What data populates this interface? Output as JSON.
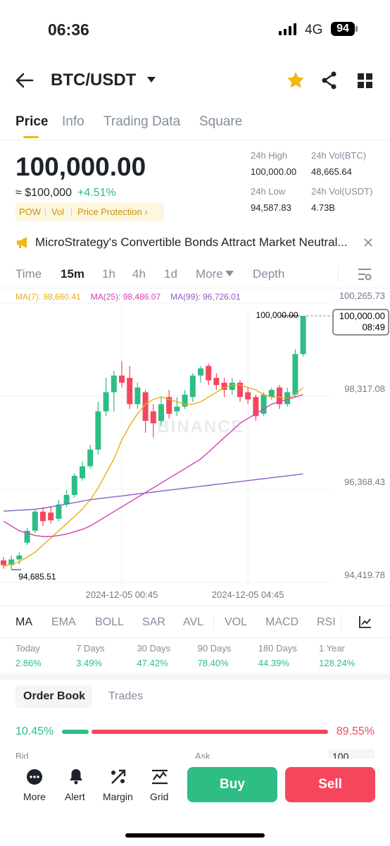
{
  "status_bar": {
    "time": "06:36",
    "network": "4G",
    "battery": "94"
  },
  "header": {
    "pair": "BTC/USDT"
  },
  "tabs": [
    "Price",
    "Info",
    "Trading Data",
    "Square"
  ],
  "ticker": {
    "price": "100,000.00",
    "approx": "≈ $100,000",
    "change": "+4.51%",
    "tags": [
      "POW",
      "Vol",
      "Price Protection ›"
    ],
    "stats": [
      {
        "label": "24h High",
        "value": "100,000.00"
      },
      {
        "label": "24h Vol(BTC)",
        "value": "48,665.64"
      },
      {
        "label": "24h Low",
        "value": "94,587.83"
      },
      {
        "label": "24h Vol(USDT)",
        "value": "4.73B"
      }
    ]
  },
  "news": "MicroStrategy's Convertible Bonds Attract Market Neutral...",
  "timeframes": [
    "Time",
    "15m",
    "1h",
    "4h",
    "1d",
    "More",
    "Depth"
  ],
  "chart_data": {
    "type": "candlestick",
    "ma_legend": [
      {
        "text": "MA(7): 98,660.41",
        "color": "#e6b011"
      },
      {
        "text": "MA(25): 98,486.07",
        "color": "#d83fb5"
      },
      {
        "text": "MA(99): 96,726.01",
        "color": "#8d5fc8"
      }
    ],
    "watermark": "BINANCE",
    "categories": [
      null,
      null,
      null,
      null,
      null,
      null,
      null,
      null,
      null,
      null,
      null,
      null,
      null,
      null,
      null,
      "2024-12-05 00:45",
      null,
      null,
      null,
      null,
      null,
      null,
      null,
      null,
      null,
      null,
      null,
      null,
      null,
      null,
      null,
      "2024-12-05 04:45",
      null,
      null,
      null,
      null,
      null,
      null,
      null
    ],
    "open": [
      94880,
      94780,
      94900,
      95250,
      95500,
      95900,
      95880,
      95750,
      96050,
      96250,
      96600,
      96850,
      97200,
      98000,
      98400,
      98750,
      98700,
      98150,
      98400,
      98000,
      97800,
      98300,
      98000,
      98100,
      98300,
      98750,
      98950,
      98700,
      98600,
      98450,
      98600,
      98400,
      98300,
      97950,
      98300,
      98500,
      98150,
      98350,
      99200
    ],
    "high": [
      94950,
      94980,
      95050,
      95560,
      95950,
      96000,
      96000,
      96150,
      96350,
      96700,
      96950,
      97300,
      98200,
      98700,
      98850,
      99050,
      98950,
      98600,
      98450,
      98150,
      98300,
      98450,
      98300,
      98450,
      98800,
      98950,
      99000,
      98800,
      98700,
      98700,
      98650,
      98500,
      98350,
      98400,
      98500,
      98550,
      98500,
      99300,
      100000
    ],
    "low": [
      94700,
      94685.51,
      94800,
      95200,
      95450,
      95600,
      95650,
      95700,
      96000,
      96200,
      96550,
      96800,
      97100,
      97900,
      98000,
      98500,
      98050,
      98050,
      97550,
      97450,
      97700,
      97850,
      97900,
      98050,
      98200,
      98600,
      98550,
      98450,
      98300,
      98350,
      98200,
      98150,
      97800,
      97900,
      98250,
      98050,
      98100,
      98300,
      99150
    ],
    "close": [
      94780,
      94900,
      94980,
      95500,
      95900,
      95700,
      95720,
      96050,
      96250,
      96650,
      96850,
      97200,
      98000,
      98400,
      98750,
      98600,
      98150,
      98500,
      97800,
      97750,
      98150,
      97950,
      98100,
      98350,
      98750,
      98900,
      98650,
      98550,
      98450,
      98600,
      98300,
      98250,
      97900,
      98350,
      98450,
      98150,
      98400,
      99200,
      100000
    ],
    "up_color": "#2ebd85",
    "down_color": "#f6465d",
    "lines": [
      {
        "color": "#e6b011",
        "values": [
          94750,
          94800,
          94850,
          94950,
          95050,
          95200,
          95350,
          95500,
          95650,
          95800,
          95950,
          96150,
          96400,
          96700,
          97000,
          97400,
          97700,
          97950,
          98150,
          98250,
          98300,
          98250,
          98200,
          98150,
          98150,
          98200,
          98300,
          98400,
          98500,
          98550,
          98550,
          98500,
          98450,
          98350,
          98300,
          98300,
          98250,
          98350,
          98500
        ]
      },
      {
        "color": "#d83fb5",
        "values": [
          95700,
          95600,
          95500,
          95450,
          95400,
          95380,
          95380,
          95400,
          95430,
          95480,
          95530,
          95600,
          95700,
          95800,
          95900,
          96000,
          96100,
          96200,
          96300,
          96400,
          96500,
          96600,
          96700,
          96800,
          96900,
          97000,
          97150,
          97300,
          97450,
          97600,
          97750,
          97850,
          97950,
          98050,
          98150,
          98200,
          98250,
          98300,
          98350
        ]
      },
      {
        "color": "#8d5fc8",
        "values": [
          95910,
          95920,
          95930,
          95940,
          95950,
          95970,
          96000,
          96030,
          96060,
          96090,
          96120,
          96150,
          96170,
          96190,
          96210,
          96230,
          96250,
          96270,
          96290,
          96310,
          96330,
          96350,
          96370,
          96390,
          96410,
          96430,
          96450,
          96470,
          96490,
          96510,
          96530,
          96550,
          96570,
          96590,
          96610,
          96630,
          96650,
          96670,
          96690
        ]
      }
    ],
    "ylim": [
      94419.78,
      100265.73
    ],
    "yticks": [
      {
        "value": 100265.73,
        "label": "100,265.73"
      },
      {
        "value": 98317.08,
        "label": "98,317.08"
      },
      {
        "value": 96368.43,
        "label": "96,368.43"
      },
      {
        "value": 94419.78,
        "label": "94,419.78"
      }
    ],
    "last_price": {
      "value": 100000,
      "label": "100,000.00"
    },
    "countdown": "08:49",
    "high_label": {
      "value": 100000,
      "label": "100,000.00"
    },
    "low_label": {
      "value": 94685.51,
      "label": "94,685.51"
    }
  },
  "indicators": [
    "MA",
    "EMA",
    "BOLL",
    "SAR",
    "AVL",
    "VOL",
    "MACD",
    "RSI"
  ],
  "performance": [
    {
      "label": "Today",
      "value": "2.86%"
    },
    {
      "label": "7 Days",
      "value": "3.49%"
    },
    {
      "label": "30 Days",
      "value": "47.42%"
    },
    {
      "label": "90 Days",
      "value": "78.40%"
    },
    {
      "label": "180 Days",
      "value": "44.39%"
    },
    {
      "label": "1 Year",
      "value": "128.24%"
    }
  ],
  "order_tabs": [
    "Order Book",
    "Trades"
  ],
  "ratio": {
    "bid": 10.45,
    "bid_label": "10.45%",
    "ask": 89.55,
    "ask_label": "89.55%"
  },
  "book_header": {
    "bid": "Bid",
    "ask": "Ask",
    "depth": "100"
  },
  "bottom_nav": [
    "More",
    "Alert",
    "Margin",
    "Grid"
  ],
  "actions": {
    "buy": "Buy",
    "sell": "Sell"
  }
}
